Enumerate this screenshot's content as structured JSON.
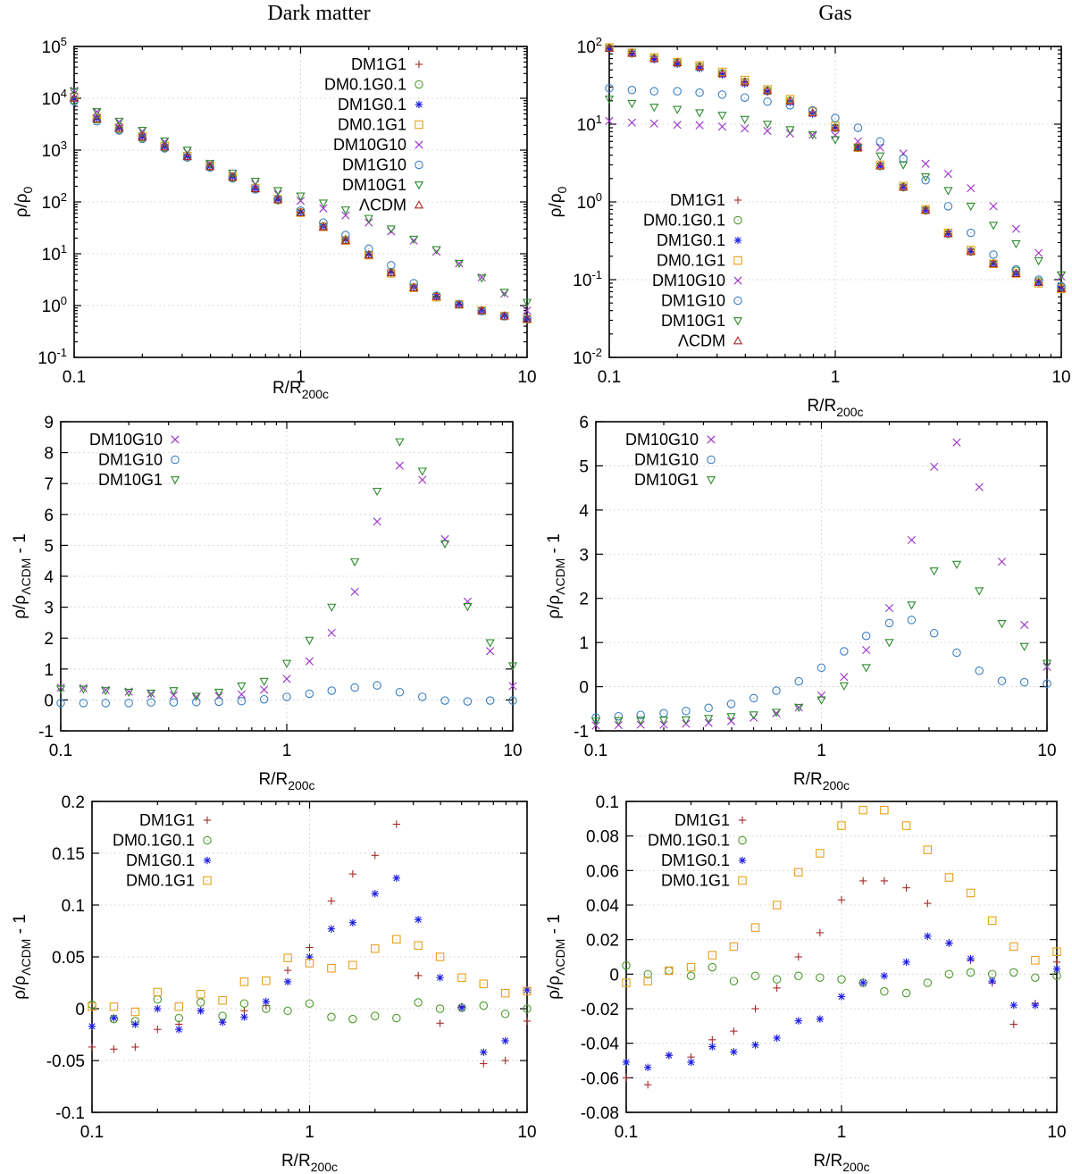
{
  "figure": {
    "column_titles": [
      "Dark matter",
      "Gas"
    ]
  },
  "legend_colors": {
    "DM1G1": "#a52a2a",
    "DM0.1G0.1": "#4c9a2a",
    "DM1G0.1": "#1a1ae6",
    "DM0.1G1": "#e6a01a",
    "DM10G10": "#9b30c8",
    "DM1G10": "#3a7fc0",
    "DM10G1": "#2e8b2e",
    "ΛCDM": "#a52a2a"
  },
  "markers": {
    "DM1G1": "plus",
    "DM0.1G0.1": "circle",
    "DM1G0.1": "star",
    "DM0.1G1": "square",
    "DM10G10": "cross",
    "DM1G10": "circle",
    "DM10G1": "triangle-down",
    "ΛCDM": "triangle-up"
  },
  "chart_data": [
    {
      "id": "dm-profile",
      "type": "scatter",
      "title": "Dark matter",
      "xlabel": "R/R_200c",
      "ylabel": "ρ/ρ_0",
      "xscale": "log",
      "yscale": "log",
      "xlim": [
        0.1,
        10
      ],
      "ylim": [
        0.1,
        100000
      ],
      "xticks": [
        "0.1",
        "1",
        "10"
      ],
      "yticks": [
        "10^-1",
        "10^0",
        "10^1",
        "10^2",
        "10^3",
        "10^4",
        "10^5"
      ],
      "grid": true,
      "legend_position": "top-right",
      "x": [
        0.1,
        0.126,
        0.158,
        0.2,
        0.251,
        0.316,
        0.398,
        0.501,
        0.631,
        0.794,
        1,
        1.26,
        1.58,
        2,
        2.51,
        3.16,
        3.98,
        5.01,
        6.31,
        7.94,
        10
      ],
      "series": [
        {
          "name": "DM1G1",
          "values": [
            10000,
            4000,
            2600,
            1800,
            1150,
            750,
            480,
            300,
            180,
            110,
            62,
            33,
            18,
            9.5,
            4.3,
            2.2,
            1.5,
            1.05,
            0.8,
            0.63,
            0.55
          ]
        },
        {
          "name": "DM0.1G0.1",
          "values": [
            9200,
            3900,
            2500,
            1750,
            1120,
            730,
            470,
            295,
            178,
            108,
            63,
            34,
            18.5,
            9.6,
            4.4,
            2.25,
            1.5,
            1.06,
            0.8,
            0.63,
            0.55
          ]
        },
        {
          "name": "DM1G0.1",
          "values": [
            10000,
            4100,
            2700,
            1800,
            1170,
            760,
            490,
            305,
            182,
            112,
            64,
            34,
            19,
            9.8,
            4.5,
            2.3,
            1.5,
            1.07,
            0.8,
            0.64,
            0.56
          ]
        },
        {
          "name": "DM0.1G1",
          "values": [
            10500,
            4100,
            2700,
            1850,
            1200,
            770,
            500,
            310,
            185,
            113,
            62,
            33,
            18,
            9.4,
            4.2,
            2.2,
            1.45,
            1.05,
            0.8,
            0.63,
            0.55
          ]
        },
        {
          "name": "DM10G10",
          "values": [
            14000,
            5500,
            3500,
            2300,
            1450,
            900,
            550,
            340,
            220,
            140,
            105,
            75,
            55,
            40,
            27,
            18,
            11,
            6.5,
            3.5,
            1.7,
            0.8
          ]
        },
        {
          "name": "DM1G10",
          "values": [
            8800,
            3600,
            2400,
            1650,
            1080,
            720,
            460,
            285,
            175,
            112,
            68,
            40,
            23,
            12.5,
            6,
            2.7,
            1.55,
            1.05,
            0.78,
            0.62,
            0.55
          ]
        },
        {
          "name": "DM10G1",
          "values": [
            13500,
            5500,
            3600,
            2400,
            1500,
            1000,
            550,
            360,
            250,
            165,
            130,
            95,
            70,
            48,
            30,
            19,
            12,
            6.5,
            3.4,
            1.8,
            1.15
          ]
        },
        {
          "name": "ΛCDM",
          "values": [
            10000,
            4000,
            2650,
            1780,
            1150,
            750,
            480,
            300,
            180,
            110,
            62,
            33,
            18,
            9.5,
            4.3,
            2.2,
            1.5,
            1.05,
            0.8,
            0.63,
            0.55
          ]
        }
      ]
    },
    {
      "id": "gas-profile",
      "type": "scatter",
      "title": "Gas",
      "xlabel": "R/R_200c",
      "ylabel": "ρ/ρ_0",
      "xscale": "log",
      "yscale": "log",
      "xlim": [
        0.1,
        10
      ],
      "ylim": [
        0.01,
        100
      ],
      "xticks": [
        "0.1",
        "1",
        "10"
      ],
      "yticks": [
        "10^-2",
        "10^-1",
        "10^0",
        "10^1",
        "10^2"
      ],
      "grid": true,
      "legend_position": "bottom-left",
      "x": [
        0.1,
        0.126,
        0.158,
        0.2,
        0.251,
        0.316,
        0.398,
        0.501,
        0.631,
        0.794,
        1,
        1.26,
        1.58,
        2,
        2.51,
        3.16,
        3.98,
        5.01,
        6.31,
        7.94,
        10
      ],
      "series": [
        {
          "name": "DM1G1",
          "values": [
            95,
            82,
            70,
            62,
            55,
            45,
            35,
            27,
            20,
            14,
            9,
            5,
            2.9,
            1.55,
            0.78,
            0.39,
            0.23,
            0.16,
            0.12,
            0.092,
            0.077
          ]
        },
        {
          "name": "DM0.1G0.1",
          "values": [
            95,
            82,
            70,
            62,
            55,
            45,
            35,
            27,
            20,
            15,
            9,
            5,
            2.9,
            1.55,
            0.78,
            0.39,
            0.23,
            0.16,
            0.13,
            0.095,
            0.08
          ]
        },
        {
          "name": "DM1G0.1",
          "values": [
            93,
            80,
            68,
            59,
            52,
            43,
            33,
            26,
            19,
            13.5,
            9,
            5,
            2.9,
            1.55,
            0.78,
            0.39,
            0.23,
            0.16,
            0.12,
            0.092,
            0.077
          ]
        },
        {
          "name": "DM0.1G1",
          "values": [
            97,
            83,
            72,
            63,
            57,
            47,
            37,
            28,
            21,
            14.5,
            9.5,
            5,
            3,
            1.6,
            0.8,
            0.4,
            0.24,
            0.16,
            0.12,
            0.09,
            0.076
          ]
        },
        {
          "name": "DM10G10",
          "values": [
            11,
            10.5,
            10.2,
            9.8,
            9.7,
            9.3,
            8.8,
            8.2,
            7.6,
            7.3,
            7.2,
            6,
            5,
            4.2,
            3.1,
            2.3,
            1.5,
            0.88,
            0.45,
            0.22,
            0.11
          ]
        },
        {
          "name": "DM1G10",
          "values": [
            29,
            27.5,
            26.5,
            26.5,
            25.5,
            24,
            22,
            19.5,
            17.5,
            15,
            12,
            9,
            6,
            3.6,
            1.9,
            0.88,
            0.4,
            0.21,
            0.135,
            0.1,
            0.082
          ]
        },
        {
          "name": "DM10G1",
          "values": [
            21,
            18.5,
            16.5,
            15.5,
            14,
            13,
            11.5,
            10,
            8.5,
            7.3,
            6.3,
            5,
            3.9,
            3,
            2.1,
            1.4,
            0.88,
            0.5,
            0.29,
            0.175,
            0.115
          ]
        },
        {
          "name": "ΛCDM",
          "values": [
            95,
            82,
            70,
            62,
            55,
            45,
            35,
            27,
            20,
            14,
            9,
            5,
            2.9,
            1.55,
            0.78,
            0.39,
            0.23,
            0.16,
            0.12,
            0.092,
            0.077
          ]
        }
      ]
    },
    {
      "id": "dm-ratio-high",
      "type": "scatter",
      "title": "",
      "xlabel": "R/R_200c",
      "ylabel": "ρ/ρ_ΛCDM - 1",
      "xscale": "log",
      "yscale": "linear",
      "xlim": [
        0.1,
        10
      ],
      "ylim": [
        -1,
        9
      ],
      "xticks": [
        "0.1",
        "1",
        "10"
      ],
      "yticks": [
        "-1",
        "0",
        "1",
        "2",
        "3",
        "4",
        "5",
        "6",
        "7",
        "8",
        "9"
      ],
      "grid": true,
      "legend_position": "top-left",
      "x": [
        0.1,
        0.126,
        0.158,
        0.2,
        0.251,
        0.316,
        0.398,
        0.501,
        0.631,
        0.794,
        1,
        1.26,
        1.58,
        2,
        2.51,
        3.16,
        3.98,
        5.01,
        6.31,
        7.94,
        10
      ],
      "series": [
        {
          "name": "DM10G10",
          "values": [
            0.4,
            0.38,
            0.32,
            0.27,
            0.2,
            0.15,
            0.1,
            0.12,
            0.18,
            0.33,
            0.68,
            1.25,
            2.17,
            3.5,
            5.77,
            7.58,
            7.12,
            5.2,
            3.18,
            1.58,
            0.45
          ]
        },
        {
          "name": "DM1G10",
          "values": [
            -0.1,
            -0.1,
            -0.1,
            -0.1,
            -0.08,
            -0.08,
            -0.07,
            -0.06,
            -0.04,
            0.02,
            0.1,
            0.2,
            0.3,
            0.4,
            0.47,
            0.25,
            0.1,
            -0.02,
            -0.05,
            -0.02,
            -0.02
          ]
        },
        {
          "name": "DM10G1",
          "values": [
            0.35,
            0.35,
            0.3,
            0.25,
            0.22,
            0.3,
            0.12,
            0.25,
            0.45,
            0.6,
            1.18,
            1.93,
            3.0,
            4.47,
            6.75,
            8.35,
            7.4,
            5.05,
            3.02,
            1.85,
            1.1
          ]
        }
      ]
    },
    {
      "id": "gas-ratio-high",
      "type": "scatter",
      "title": "",
      "xlabel": "R/R_200c",
      "ylabel": "ρ/ρ_ΛCDM - 1",
      "xscale": "log",
      "yscale": "linear",
      "xlim": [
        0.1,
        10
      ],
      "ylim": [
        -1,
        6
      ],
      "xticks": [
        "0.1",
        "1",
        "10"
      ],
      "yticks": [
        "-1",
        "0",
        "1",
        "2",
        "3",
        "4",
        "5",
        "6"
      ],
      "grid": true,
      "legend_position": "top-left",
      "x": [
        0.1,
        0.126,
        0.158,
        0.2,
        0.251,
        0.316,
        0.398,
        0.501,
        0.631,
        0.794,
        1,
        1.26,
        1.58,
        2,
        2.51,
        3.16,
        3.98,
        5.01,
        6.31,
        7.94,
        10
      ],
      "series": [
        {
          "name": "DM10G10",
          "values": [
            -0.88,
            -0.87,
            -0.86,
            -0.86,
            -0.84,
            -0.82,
            -0.78,
            -0.7,
            -0.6,
            -0.47,
            -0.2,
            0.22,
            0.83,
            1.78,
            3.32,
            4.98,
            5.53,
            4.52,
            2.83,
            1.4,
            0.45
          ]
        },
        {
          "name": "DM1G10",
          "values": [
            -0.7,
            -0.67,
            -0.64,
            -0.6,
            -0.55,
            -0.48,
            -0.39,
            -0.26,
            -0.09,
            0.12,
            0.43,
            0.8,
            1.15,
            1.44,
            1.51,
            1.21,
            0.77,
            0.36,
            0.13,
            0.1,
            0.07
          ]
        },
        {
          "name": "DM10G1",
          "values": [
            -0.78,
            -0.77,
            -0.76,
            -0.76,
            -0.75,
            -0.72,
            -0.68,
            -0.64,
            -0.58,
            -0.47,
            -0.3,
            0.02,
            0.43,
            1.0,
            1.85,
            2.62,
            2.77,
            2.17,
            1.43,
            0.91,
            0.53
          ]
        }
      ]
    },
    {
      "id": "dm-ratio-low",
      "type": "scatter",
      "title": "",
      "xlabel": "R/R_200c",
      "ylabel": "ρ/ρ_ΛCDM - 1",
      "xscale": "log",
      "yscale": "linear",
      "xlim": [
        0.1,
        10
      ],
      "ylim": [
        -0.1,
        0.2
      ],
      "xticks": [
        "0.1",
        "1",
        "10"
      ],
      "yticks": [
        "-0.1",
        "-0.05",
        "0",
        "0.05",
        "0.1",
        "0.15",
        "0.2"
      ],
      "grid": true,
      "legend_position": "top-left",
      "x": [
        0.1,
        0.126,
        0.158,
        0.2,
        0.251,
        0.316,
        0.398,
        0.501,
        0.631,
        0.794,
        1,
        1.26,
        1.58,
        2,
        2.51,
        3.16,
        3.98,
        5.01,
        6.31,
        7.94,
        10
      ],
      "series": [
        {
          "name": "DM1G1",
          "values": [
            -0.037,
            -0.039,
            -0.037,
            -0.02,
            -0.015,
            -0.002,
            -0.013,
            -0.002,
            0.003,
            0.037,
            0.059,
            0.104,
            0.13,
            0.148,
            0.178,
            0.032,
            -0.014,
            0.002,
            -0.053,
            -0.05,
            -0.012
          ]
        },
        {
          "name": "DM0.1G0.1",
          "values": [
            0.004,
            -0.01,
            -0.012,
            0.009,
            -0.009,
            0.006,
            -0.007,
            0.005,
            0.0,
            -0.002,
            0.005,
            -0.008,
            -0.01,
            -0.007,
            -0.009,
            0.006,
            0.0,
            0.001,
            0.003,
            -0.005,
            0.0
          ]
        },
        {
          "name": "DM1G0.1",
          "values": [
            -0.017,
            -0.009,
            -0.015,
            0.0,
            -0.02,
            -0.002,
            -0.013,
            -0.008,
            0.007,
            0.026,
            0.05,
            0.077,
            0.083,
            0.111,
            0.126,
            0.086,
            0.03,
            0.001,
            -0.042,
            -0.031,
            0.018
          ]
        },
        {
          "name": "DM0.1G1",
          "values": [
            0.002,
            0.002,
            -0.003,
            0.016,
            0.002,
            0.014,
            0.008,
            0.026,
            0.027,
            0.049,
            0.044,
            0.039,
            0.042,
            0.058,
            0.067,
            0.061,
            0.05,
            0.03,
            0.024,
            0.015,
            0.017
          ]
        }
      ]
    },
    {
      "id": "gas-ratio-low",
      "type": "scatter",
      "title": "",
      "xlabel": "R/R_200c",
      "ylabel": "ρ/ρ_ΛCDM - 1",
      "xscale": "log",
      "yscale": "linear",
      "xlim": [
        0.1,
        10
      ],
      "ylim": [
        -0.08,
        0.1
      ],
      "xticks": [
        "0.1",
        "1",
        "10"
      ],
      "yticks": [
        "-0.08",
        "-0.06",
        "-0.04",
        "-0.02",
        "0",
        "0.02",
        "0.04",
        "0.06",
        "0.08",
        "0.1"
      ],
      "grid": true,
      "legend_position": "top-left",
      "x": [
        0.1,
        0.126,
        0.158,
        0.2,
        0.251,
        0.316,
        0.398,
        0.501,
        0.631,
        0.794,
        1,
        1.26,
        1.58,
        2,
        2.51,
        3.16,
        3.98,
        5.01,
        6.31,
        7.94,
        10
      ],
      "series": [
        {
          "name": "DM1G1",
          "values": [
            -0.06,
            -0.064,
            -0.047,
            -0.048,
            -0.038,
            -0.033,
            -0.02,
            -0.008,
            0.01,
            0.024,
            0.043,
            0.054,
            0.054,
            0.05,
            0.041,
            0.018,
            0.008,
            -0.005,
            -0.029,
            -0.017,
            0.007
          ]
        },
        {
          "name": "DM0.1G0.1",
          "values": [
            0.005,
            0.0,
            0.002,
            -0.001,
            0.004,
            -0.004,
            -0.001,
            -0.003,
            -0.001,
            -0.002,
            -0.003,
            -0.005,
            -0.01,
            -0.011,
            -0.005,
            0.0,
            0.001,
            0.0,
            0.001,
            -0.002,
            -0.001
          ]
        },
        {
          "name": "DM1G0.1",
          "values": [
            -0.051,
            -0.054,
            -0.047,
            -0.051,
            -0.042,
            -0.045,
            -0.041,
            -0.037,
            -0.027,
            -0.026,
            -0.013,
            -0.005,
            -0.001,
            0.007,
            0.022,
            0.018,
            0.009,
            -0.004,
            -0.018,
            -0.018,
            0.003
          ]
        },
        {
          "name": "DM0.1G1",
          "values": [
            -0.005,
            -0.004,
            0.002,
            0.004,
            0.011,
            0.016,
            0.027,
            0.04,
            0.059,
            0.07,
            0.086,
            0.095,
            0.095,
            0.086,
            0.072,
            0.056,
            0.047,
            0.031,
            0.016,
            0.008,
            0.013
          ]
        }
      ]
    }
  ]
}
